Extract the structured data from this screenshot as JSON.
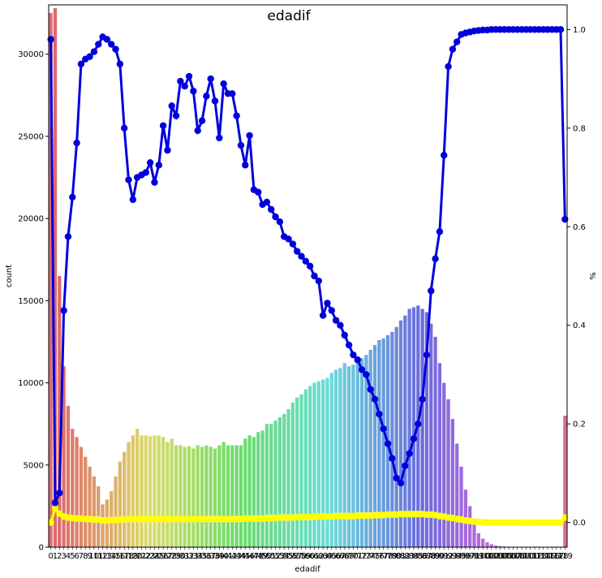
{
  "chart_data": {
    "type": "bar",
    "title": "edadif",
    "xlabel": "edadif",
    "ylabel": "count",
    "ylabel_right": "%",
    "x": [
      0,
      1,
      2,
      3,
      4,
      5,
      6,
      7,
      8,
      9,
      10,
      11,
      12,
      13,
      14,
      15,
      16,
      17,
      18,
      19,
      20,
      21,
      22,
      23,
      24,
      25,
      26,
      27,
      28,
      29,
      30,
      31,
      32,
      33,
      34,
      35,
      36,
      37,
      38,
      39,
      40,
      41,
      42,
      43,
      44,
      45,
      46,
      47,
      48,
      49,
      50,
      51,
      52,
      53,
      54,
      55,
      56,
      57,
      58,
      59,
      60,
      61,
      62,
      63,
      64,
      65,
      66,
      67,
      68,
      69,
      70,
      71,
      72,
      73,
      74,
      75,
      76,
      77,
      78,
      79,
      80,
      81,
      82,
      83,
      84,
      85,
      86,
      87,
      88,
      89,
      90,
      91,
      92,
      93,
      94,
      95,
      96,
      97,
      98,
      99,
      100,
      101,
      102,
      103,
      104,
      105,
      106,
      107,
      108,
      109,
      110,
      111,
      112,
      113,
      114,
      115,
      116,
      117,
      118,
      119
    ],
    "x_tick_labels": [
      "0",
      "1",
      "2",
      "3",
      "4",
      "5",
      "6",
      "7",
      "8",
      "9",
      "10",
      "11",
      "12",
      "13",
      "14",
      "15",
      "16",
      "17",
      "18",
      "19",
      "20",
      "21",
      "22",
      "23",
      "24",
      "25",
      "26",
      "27",
      "28",
      "29",
      "30",
      "31",
      "32",
      "33",
      "34",
      "35",
      "36",
      "37",
      "38",
      "39",
      "40",
      "41",
      "42",
      "43",
      "44",
      "45",
      "46",
      "47",
      "48",
      "49",
      "50",
      "51",
      "52",
      "53",
      "54",
      "55",
      "56",
      "57",
      "58",
      "59",
      "60",
      "61",
      "62",
      "63",
      "64",
      "65",
      "66",
      "67",
      "68",
      "69",
      "70",
      "71",
      "72",
      "73",
      "74",
      "75",
      "76",
      "77",
      "78",
      "79",
      "80",
      "81",
      "82",
      "83",
      "84",
      "85",
      "86",
      "87",
      "88",
      "89",
      "90",
      "91",
      "92",
      "93",
      "94",
      "95",
      "96",
      "97",
      "98",
      "99",
      "100",
      "101",
      "102",
      "103",
      "104",
      "105",
      "106",
      "107",
      "108",
      "109",
      "110",
      "111",
      "112",
      "113",
      "114",
      "115",
      "116",
      "117",
      "118",
      "119"
    ],
    "counts": [
      32500,
      32800,
      16500,
      11000,
      8600,
      7200,
      6700,
      6100,
      5500,
      4900,
      4300,
      3700,
      2600,
      2900,
      3400,
      4300,
      5200,
      5800,
      6400,
      6800,
      7200,
      6800,
      6800,
      6750,
      6800,
      6800,
      6700,
      6400,
      6600,
      6200,
      6200,
      6100,
      6150,
      6000,
      6200,
      6100,
      6200,
      6100,
      6000,
      6200,
      6400,
      6200,
      6200,
      6200,
      6200,
      6600,
      6800,
      6700,
      7000,
      7100,
      7500,
      7500,
      7700,
      7900,
      8100,
      8400,
      8800,
      9100,
      9300,
      9600,
      9800,
      10000,
      10100,
      10200,
      10300,
      10600,
      10800,
      10900,
      11200,
      11000,
      11100,
      11300,
      11500,
      11700,
      12000,
      12300,
      12600,
      12700,
      12900,
      13100,
      13400,
      13800,
      14100,
      14500,
      14600,
      14700,
      14500,
      14300,
      13600,
      12800,
      11200,
      10000,
      9000,
      7800,
      6300,
      4900,
      3500,
      2500,
      1600,
      850,
      520,
      300,
      180,
      100,
      60,
      40,
      20,
      15,
      10,
      8,
      5,
      5,
      4,
      3,
      3,
      2,
      2,
      2,
      2,
      8000
    ],
    "yticks_left": [
      0,
      5000,
      10000,
      15000,
      20000,
      25000,
      30000
    ],
    "ylim_left": [
      0,
      33000
    ],
    "blue_line": [
      0.98,
      0.04,
      0.06,
      0.43,
      0.58,
      0.66,
      0.77,
      0.93,
      0.94,
      0.945,
      0.955,
      0.97,
      0.985,
      0.98,
      0.97,
      0.96,
      0.93,
      0.8,
      0.695,
      0.655,
      0.7,
      0.705,
      0.71,
      0.73,
      0.69,
      0.725,
      0.805,
      0.755,
      0.845,
      0.825,
      0.895,
      0.885,
      0.905,
      0.875,
      0.795,
      0.815,
      0.865,
      0.9,
      0.855,
      0.78,
      0.89,
      0.87,
      0.87,
      0.825,
      0.765,
      0.725,
      0.785,
      0.675,
      0.67,
      0.645,
      0.65,
      0.635,
      0.62,
      0.61,
      0.58,
      0.575,
      0.565,
      0.55,
      0.54,
      0.53,
      0.52,
      0.5,
      0.49,
      0.42,
      0.445,
      0.43,
      0.41,
      0.4,
      0.38,
      0.36,
      0.34,
      0.33,
      0.31,
      0.3,
      0.27,
      0.25,
      0.22,
      0.19,
      0.16,
      0.13,
      0.09,
      0.08,
      0.115,
      0.14,
      0.17,
      0.2,
      0.25,
      0.34,
      0.47,
      0.535,
      0.59,
      0.745,
      0.925,
      0.96,
      0.975,
      0.99,
      0.993,
      0.995,
      0.997,
      0.998,
      0.999,
      0.999,
      1.0,
      1.0,
      1.0,
      1.0,
      1.0,
      1.0,
      1.0,
      1.0,
      1.0,
      1.0,
      1.0,
      1.0,
      1.0,
      1.0,
      1.0,
      1.0,
      1.0,
      0.615
    ],
    "yellow_line": [
      0.0,
      0.028,
      0.018,
      0.012,
      0.01,
      0.009,
      0.008,
      0.008,
      0.007,
      0.007,
      0.006,
      0.006,
      0.004,
      0.004,
      0.005,
      0.005,
      0.006,
      0.006,
      0.007,
      0.007,
      0.007,
      0.007,
      0.007,
      0.007,
      0.007,
      0.007,
      0.007,
      0.007,
      0.007,
      0.007,
      0.007,
      0.007,
      0.007,
      0.007,
      0.007,
      0.007,
      0.007,
      0.007,
      0.007,
      0.007,
      0.007,
      0.007,
      0.007,
      0.007,
      0.007,
      0.008,
      0.008,
      0.008,
      0.008,
      0.008,
      0.009,
      0.009,
      0.009,
      0.01,
      0.01,
      0.01,
      0.01,
      0.011,
      0.011,
      0.011,
      0.011,
      0.012,
      0.012,
      0.012,
      0.012,
      0.012,
      0.013,
      0.013,
      0.013,
      0.013,
      0.013,
      0.014,
      0.014,
      0.014,
      0.014,
      0.015,
      0.015,
      0.015,
      0.016,
      0.016,
      0.016,
      0.017,
      0.017,
      0.017,
      0.017,
      0.017,
      0.017,
      0.016,
      0.016,
      0.015,
      0.013,
      0.012,
      0.01,
      0.009,
      0.007,
      0.006,
      0.004,
      0.003,
      0.002,
      0.001,
      0.001,
      0.0,
      0.0,
      0.0,
      0.0,
      0.0,
      0.0,
      0.0,
      0.0,
      0.0,
      0.0,
      0.0,
      0.0,
      0.0,
      0.0,
      0.0,
      0.0,
      0.0,
      0.0,
      0.01
    ],
    "yticks_right": [
      0.0,
      0.2,
      0.4,
      0.6,
      0.8,
      1.0
    ],
    "ylim_right": [
      -0.05,
      1.05
    ],
    "colors": {
      "blue_line": "#0000dd",
      "yellow_line": "#ffff00",
      "palette_start": "#e8828a"
    },
    "grid": false,
    "legend": "none"
  }
}
